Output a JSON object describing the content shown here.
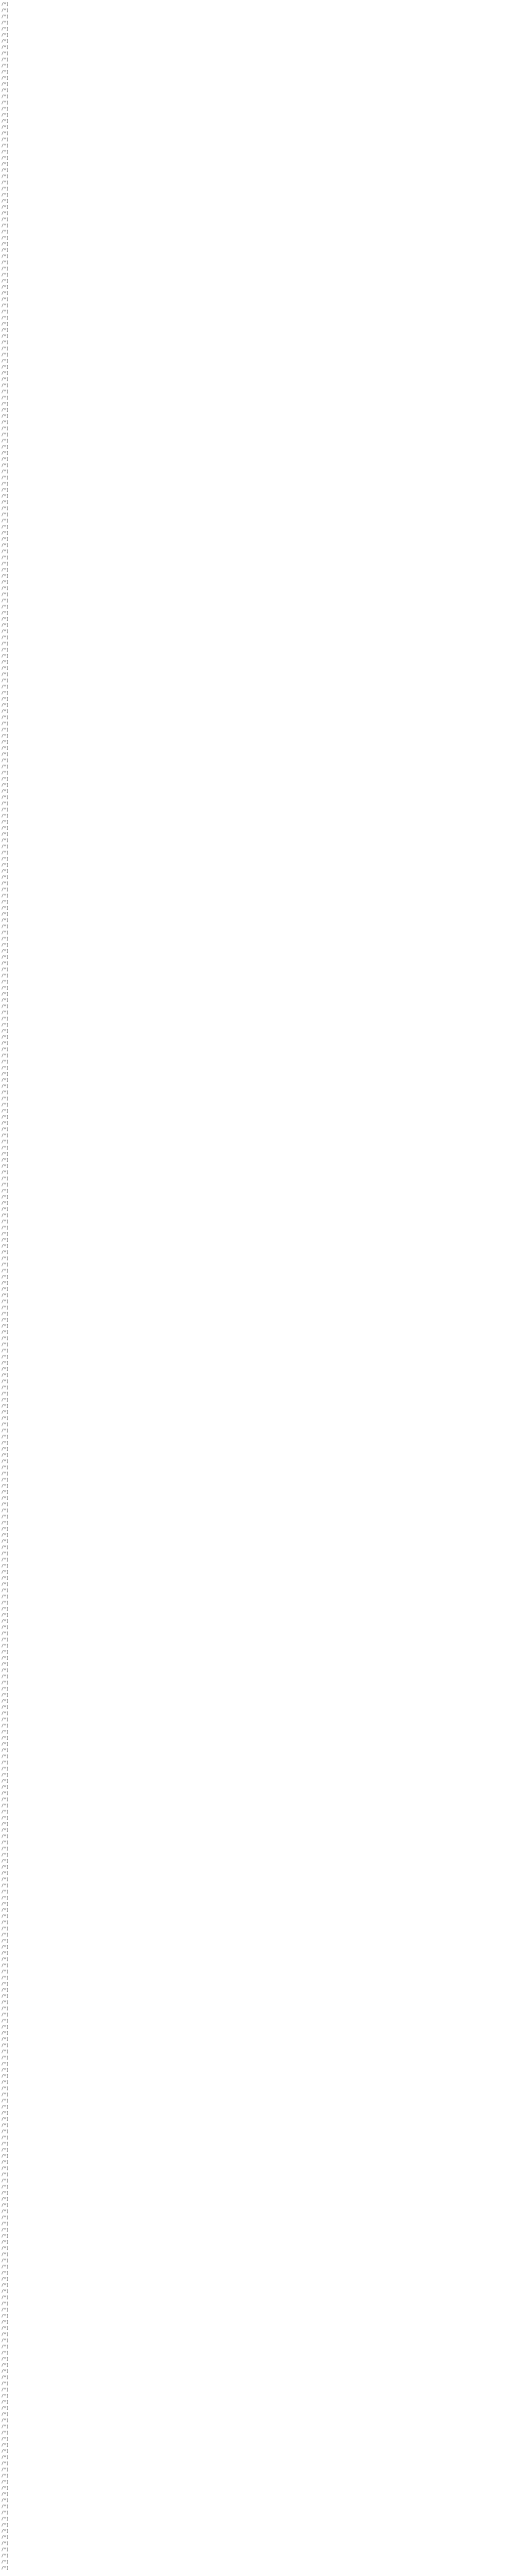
{
  "document": {
    "lines": [
      "/*]",
      "/*]",
      "/*]",
      "/*]",
      "/*]",
      "/*]",
      "/*]",
      "/*]",
      "/*]",
      "/*]",
      "/*]",
      "/*]",
      "/*]",
      "/*]",
      "/*]",
      "/*]",
      "/*]",
      "/*]",
      "/*]",
      "/*]",
      "/*]",
      "/*]",
      "/*]",
      "/*]",
      "/*]",
      "/*]",
      "/*]",
      "/*]",
      "/*]",
      "/*]",
      "/*]",
      "/*]",
      "/*]",
      "/*]",
      "/*]",
      "/*]",
      "/*]",
      "/*]",
      "/*]",
      "/*]",
      "/*]",
      "/*]",
      "/*]",
      "/*]",
      "/*]",
      "/*]",
      "/*]",
      "/*]",
      "/*]",
      "/*]",
      "/*]",
      "/*]",
      "/*]",
      "/*]",
      "/*]",
      "/*]",
      "/*]",
      "/*]",
      "/*]",
      "/*]",
      "/*]",
      "/*]",
      "/*]",
      "/*]",
      "/*]",
      "/*]",
      "/*]",
      "/*]",
      "/*]",
      "/*]",
      "/*]",
      "/*]",
      "/*]",
      "/*]",
      "/*]",
      "/*]",
      "/*]",
      "/*]",
      "/*]",
      "/*]",
      "/*]",
      "/*]",
      "/*]",
      "/*]",
      "/*]",
      "/*]",
      "/*]",
      "/*]",
      "/*]",
      "/*]",
      "/*]",
      "/*]",
      "/*]",
      "/*]",
      "/*]",
      "/*]",
      "/*]",
      "/*]",
      "/*]",
      "/*]",
      "/*]",
      "/*]",
      "/*]",
      "/*]",
      "/*]",
      "/*]",
      "/*]",
      "/*]",
      "/*]",
      "/*]",
      "/*]",
      "/*]",
      "/*]",
      "/*]",
      "/*]",
      "/*]",
      "/*]",
      "/*]",
      "/*]",
      "/*]",
      "/*]",
      "/*]",
      "/*]",
      "/*]",
      "/*]",
      "/*]",
      "/*]",
      "/*]",
      "/*]",
      "/*]",
      "/*]",
      "/*]",
      "/*]",
      "/*]",
      "/*]",
      "/*]",
      "/*]",
      "/*]",
      "/*]",
      "/*]",
      "/*]",
      "/*]",
      "/*]",
      "/*]",
      "/*]",
      "/*]",
      "/*]",
      "/*]",
      "/*]",
      "/*]",
      "/*]",
      "/*]",
      "/*]",
      "/*]",
      "/*]",
      "/*]",
      "/*]",
      "/*]",
      "/*]",
      "/*]",
      "/*]",
      "/*]",
      "/*]",
      "/*]",
      "/*]",
      "/*]",
      "/*]",
      "/*]",
      "/*]",
      "/*]",
      "/*]",
      "/*]",
      "/*]",
      "/*]",
      "/*]",
      "/*]",
      "/*]",
      "/*]",
      "/*]",
      "/*]",
      "/*]",
      "/*]",
      "/*]",
      "/*]",
      "/*]",
      "/*]",
      "/*]",
      "/*]",
      "/*]",
      "/*]",
      "/*]",
      "/*]",
      "/*]",
      "/*]",
      "/*]",
      "/*]",
      "/*]",
      "/*]",
      "/*]",
      "/*]",
      "/*]",
      "/*]",
      "/*]",
      "/*]",
      "/*]",
      "/*]",
      "/*]",
      "/*]",
      "/*]",
      "/*]",
      "/*]",
      "/*]",
      "/*]",
      "/*]",
      "/*]",
      "/*]",
      "/*]",
      "/*]",
      "/*]",
      "/*]",
      "/*]",
      "/*]",
      "/*]",
      "/*]",
      "/*]",
      "/*]",
      "/*]",
      "/*]",
      "/*]",
      "/*]",
      "/*]",
      "/*]",
      "/*]",
      "/*]",
      "/*]",
      "/*]",
      "/*]",
      "/*]",
      "/*]",
      "/*]",
      "/*]",
      "/*]",
      "/*]",
      "/*]",
      "/*]",
      "/*]",
      "/*]",
      "/*]",
      "/*]",
      "/*]",
      "/*]",
      "/*]",
      "/*]",
      "/*]",
      "/*]",
      "/*]",
      "/*]",
      "/*]",
      "/*]",
      "/*]",
      "/*]",
      "/*]",
      "/*]",
      "/*]",
      "/*]",
      "/*]",
      "/*]",
      "/*]",
      "/*]",
      "/*]",
      "/*]",
      "/*]",
      "/*]",
      "/*]",
      "/*]",
      "/*]",
      "/*]",
      "/*]",
      "/*]",
      "/*]",
      "/*]",
      "/*]",
      "/*]",
      "/*]",
      "/*]",
      "/*]",
      "/*]",
      "/*]",
      "/*]",
      "/*]",
      "/*]",
      "/*]",
      "/*]",
      "/*]",
      "/*]",
      "/*]",
      "/*]",
      "/*]",
      "/*]",
      "/*]",
      "/*]",
      "/*]",
      "/*]",
      "/*]",
      "/*]",
      "/*]",
      "/*]",
      "/*]",
      "/*]",
      "/*]",
      "/*]",
      "/*]",
      "/*]",
      "/*]",
      "/*]",
      "/*]",
      "/*]",
      "/*]",
      "/*]",
      "/*]",
      "/*]",
      "/*]",
      "/*]",
      "/*]",
      "/*]",
      "/*]",
      "/*]",
      "/*]",
      "/*]",
      "/*]",
      "/*]",
      "/*]",
      "/*]",
      "/*]",
      "/*]",
      "/*]",
      "/*]",
      "/*]",
      "/*]",
      "/*]",
      "/*]",
      "/*]",
      "/*]",
      "/*]",
      "/*]",
      "/*]",
      "/*]",
      "/*]",
      "/*]",
      "/*]",
      "/*]",
      "/*]",
      "/*]",
      "/*]",
      "/*]",
      "/*]",
      "/*]",
      "/*]",
      "/*]",
      "/*]",
      "/*]",
      "/*]",
      "/*]",
      "/*]",
      "/*]",
      "/*]",
      "/*]",
      "/*]",
      "/*]",
      "/*]",
      "/*]",
      "/*]",
      "/*]",
      "/*]",
      "/*]",
      "/*]",
      "/*]",
      "/*]",
      "/*]",
      "/*]",
      "/*]",
      "/*]",
      "/*]",
      "/*]",
      "/*]",
      "/*]",
      "/*]",
      "/*]",
      "/*]",
      "/*]",
      "/*]",
      "/*]",
      "/*]",
      "/*]",
      "/*]",
      "/*]",
      "/*]",
      "/*]",
      "/*]",
      "/*]",
      "/*]",
      "/*]",
      "/*]",
      "/*]",
      "/*]",
      "/*]",
      "/*]",
      "/*]",
      "/*]",
      "/*]",
      "/*]",
      "/*]",
      "/*]",
      "/*]",
      "/*]",
      "/*]",
      "/*]",
      "/*]",
      "/*]",
      "/*]"
    ]
  }
}
